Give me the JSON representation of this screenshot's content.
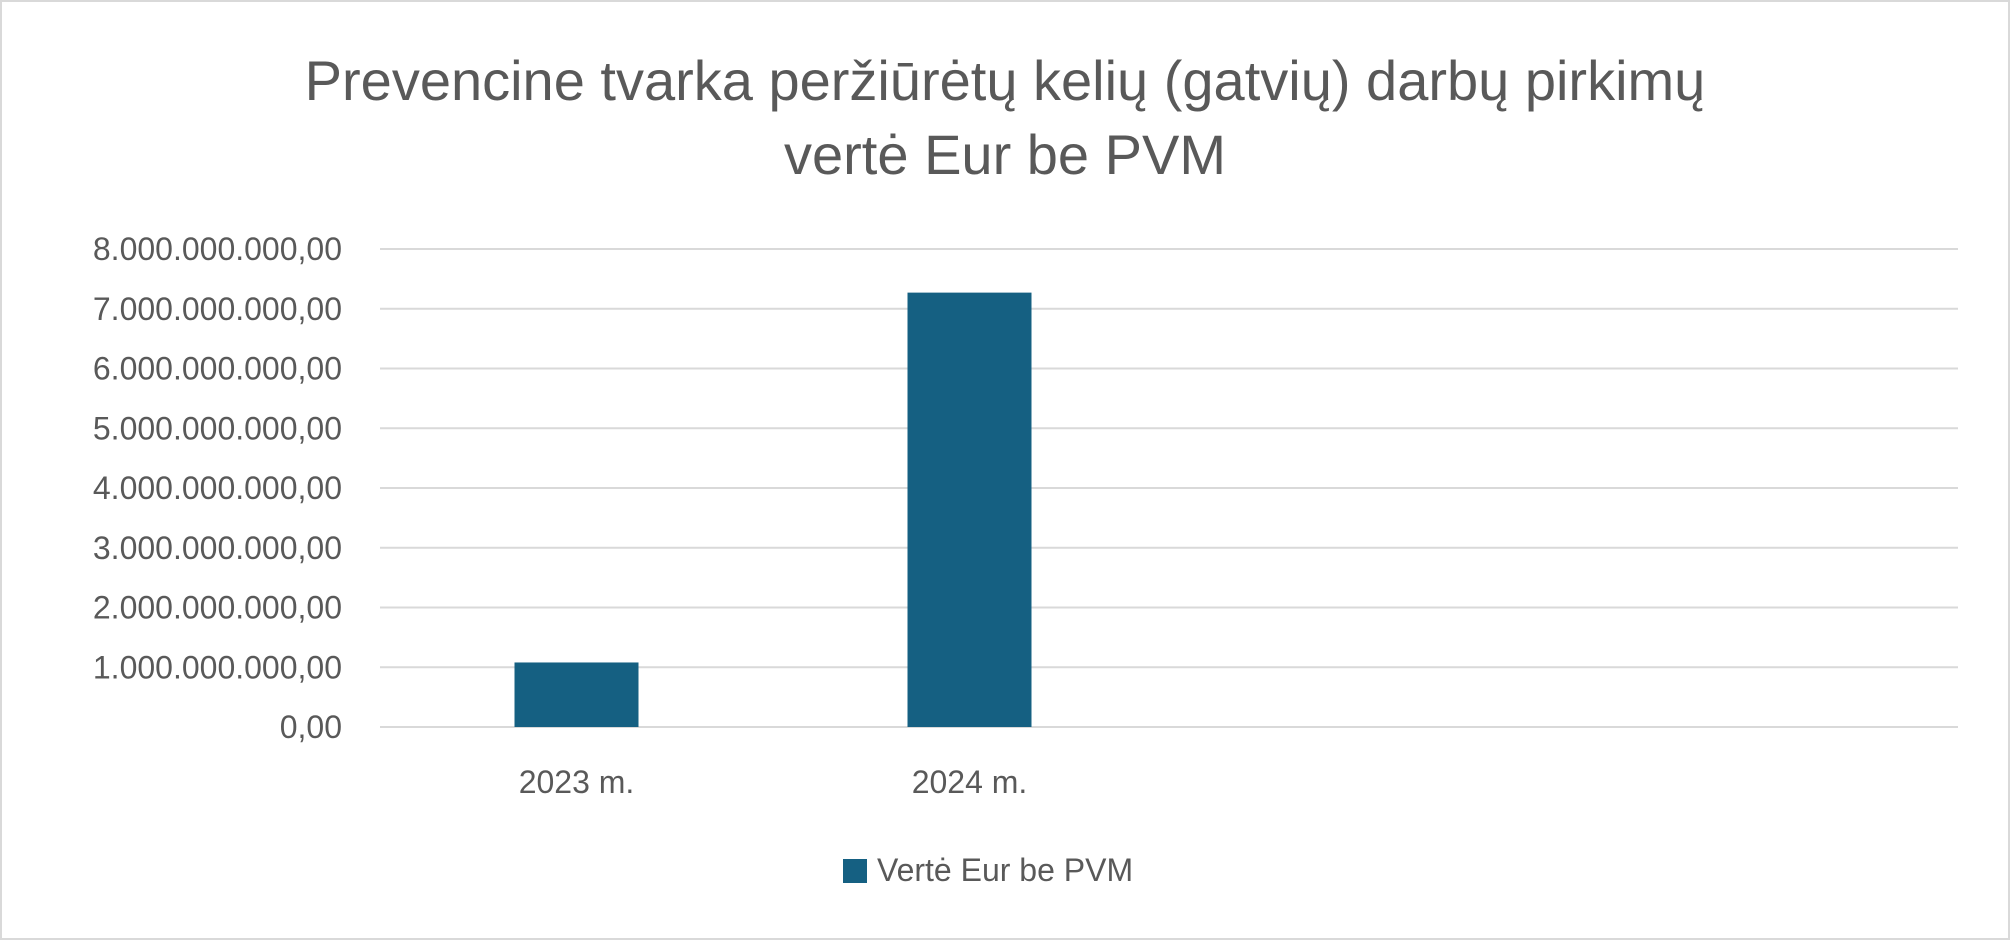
{
  "chart_data": {
    "type": "bar",
    "title_lines": [
      "Prevencine tvarka peržiūrėtų kelių (gatvių) darbų pirkimų",
      "vertė Eur be PVM"
    ],
    "categories": [
      "2023 m.",
      "2024 m."
    ],
    "series": [
      {
        "name": "Vertė Eur be PVM",
        "values": [
          1080000000,
          7270000000
        ],
        "color": "#156082"
      }
    ],
    "y_tick_values": [
      0,
      1000000000,
      2000000000,
      3000000000,
      4000000000,
      5000000000,
      6000000000,
      7000000000,
      8000000000
    ],
    "y_tick_labels": [
      "0,00",
      "1.000.000.000,00",
      "2.000.000.000,00",
      "3.000.000.000,00",
      "4.000.000.000,00",
      "5.000.000.000,00",
      "6.000.000.000,00",
      "7.000.000.000,00",
      "8.000.000.000,00"
    ],
    "ylim": [
      0,
      8000000000
    ],
    "grid": true,
    "gridline_color": "#d9d9d9",
    "legend_position": "bottom"
  }
}
